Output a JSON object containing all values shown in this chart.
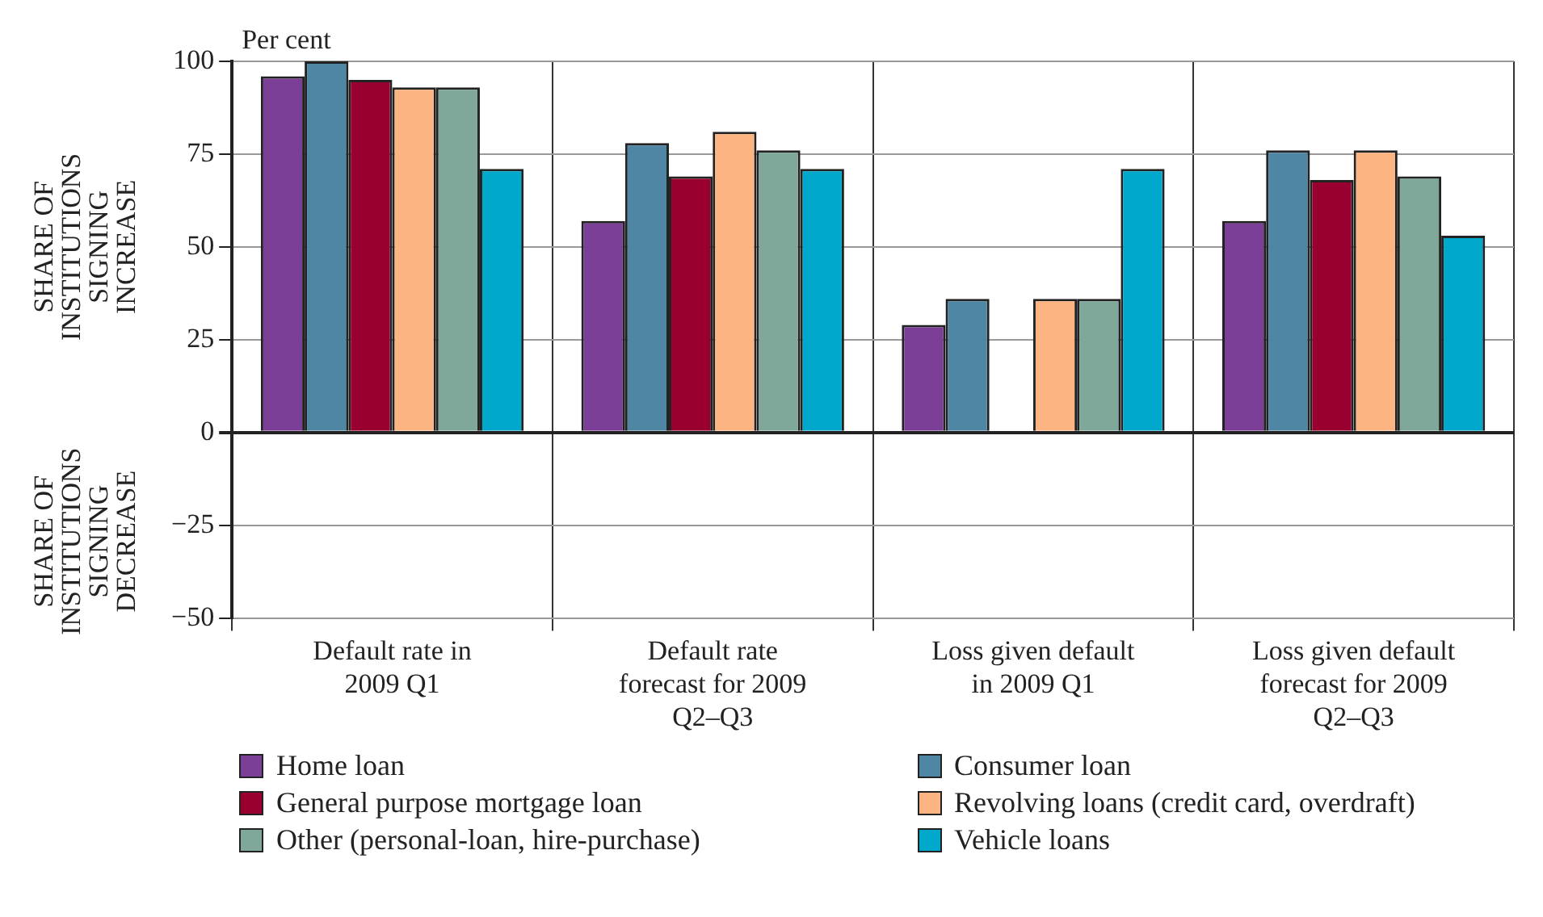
{
  "chart_data": {
    "type": "bar",
    "ylabel": "SHARE OF INSTITUTIONS SIGNING INCREASE",
    "annotations": [
      "Per cent",
      "SHARE OF INSTITUTIONS SIGNING DECREASE"
    ],
    "categories": [
      "Default rate in 2009 Q1",
      "Default rate forecast for 2009 Q2–Q3",
      "Loss given default in 2009 Q1",
      "Loss given default forecast for 2009 Q2–Q3"
    ],
    "series": [
      {
        "name": "Home loan",
        "color": "#7b3f98",
        "values": [
          96,
          57,
          29,
          57
        ]
      },
      {
        "name": "Consumer loan",
        "color": "#4f86a3",
        "values": [
          100,
          78,
          36,
          76
        ]
      },
      {
        "name": "General purpose mortgage loan",
        "color": "#990030",
        "values": [
          95,
          69,
          0,
          68
        ]
      },
      {
        "name": "Revolving loans (credit card, overdraft)",
        "color": "#fbb482",
        "values": [
          93,
          81,
          36,
          76
        ]
      },
      {
        "name": "Other (personal-loan, hire-purchase)",
        "color": "#7fa89a",
        "values": [
          93,
          76,
          36,
          69
        ]
      },
      {
        "name": "Vehicle loans",
        "color": "#00a9cb",
        "values": [
          71,
          71,
          71,
          53
        ]
      }
    ],
    "ylim": [
      -50,
      100
    ],
    "yticks": [
      -50,
      -25,
      0,
      25,
      50,
      75,
      100
    ],
    "grid": true,
    "legend": "bottom"
  }
}
